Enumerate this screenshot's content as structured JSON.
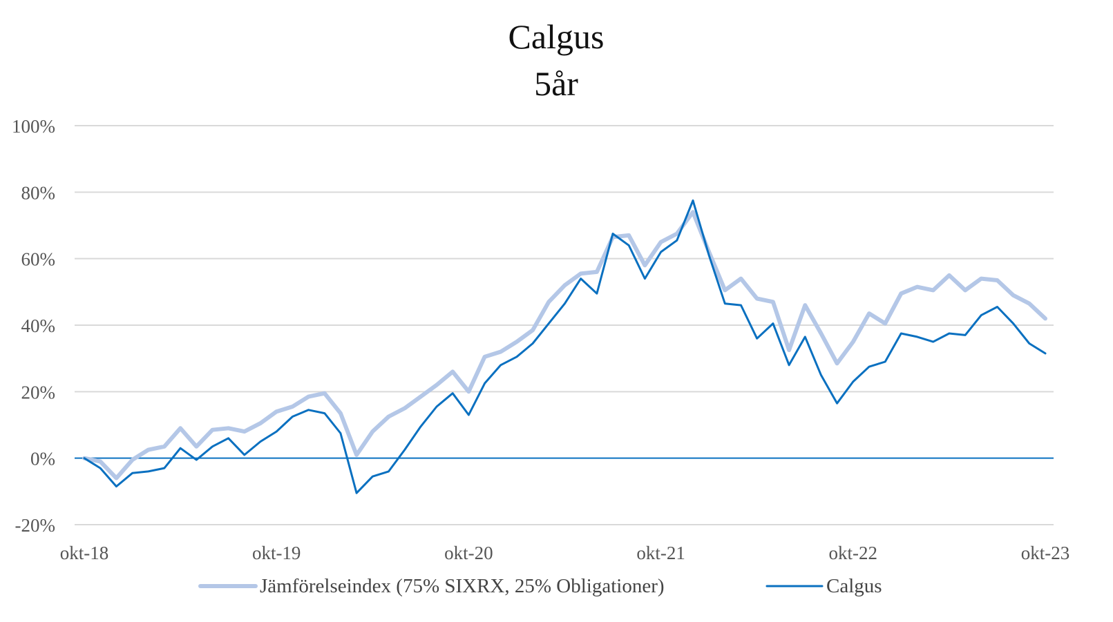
{
  "chart_data": {
    "type": "line",
    "title": "Calgus",
    "subtitle": "5år",
    "xlabel": "",
    "ylabel": "",
    "ylim": [
      -20,
      100
    ],
    "y_ticks": [
      "100%",
      "80%",
      "60%",
      "40%",
      "20%",
      "0%",
      "-20%"
    ],
    "y_tick_values": [
      100,
      80,
      60,
      40,
      20,
      0,
      -20
    ],
    "x_tick_labels": [
      "okt-18",
      "okt-19",
      "okt-20",
      "okt-21",
      "okt-22",
      "okt-23"
    ],
    "x_start": "okt-18",
    "x_end": "okt-23",
    "x_unit": "month",
    "grid": true,
    "legend_position": "bottom",
    "series": [
      {
        "name": "Jämförelseindex (75% SIXRX, 25% Obligationer)",
        "color": "#b4c7e7",
        "values": [
          0,
          -1,
          -6,
          -0.5,
          2.5,
          3.5,
          9,
          3.5,
          8.5,
          9,
          8,
          10.5,
          14,
          15.5,
          18.5,
          19.5,
          13.5,
          1,
          8,
          12.5,
          15,
          18.5,
          22,
          26,
          20,
          30.5,
          32,
          35,
          38.5,
          47,
          52,
          55.5,
          56,
          66.5,
          67,
          58,
          65,
          67.5,
          74,
          62,
          50.5,
          54,
          48,
          47,
          32.5,
          46,
          37.5,
          28.5,
          35,
          43.5,
          40.5,
          49.5,
          51.5,
          50.5,
          55,
          50.5,
          54,
          53.5,
          49,
          46.5,
          42
        ]
      },
      {
        "name": "Calgus",
        "color": "#0a70c0",
        "values": [
          0,
          -3,
          -8.5,
          -4.5,
          -4,
          -3,
          3,
          -0.5,
          3.5,
          6,
          1,
          5,
          8,
          12.5,
          14.5,
          13.5,
          7.5,
          -10.5,
          -5.5,
          -4,
          2.5,
          9.5,
          15.5,
          19.5,
          13,
          22.5,
          28,
          30.5,
          34.5,
          40.5,
          46.5,
          54,
          49.5,
          67.5,
          64,
          54,
          62,
          65.5,
          77.5,
          61,
          46.5,
          46,
          36,
          40.5,
          28,
          36.5,
          25,
          16.5,
          23,
          27.5,
          29,
          37.5,
          36.5,
          35,
          37.5,
          37,
          43,
          45.5,
          40.5,
          34.5,
          31.5
        ]
      }
    ],
    "zero_line_color": "#0a70c0",
    "grid_color": "#d9d9d9"
  }
}
